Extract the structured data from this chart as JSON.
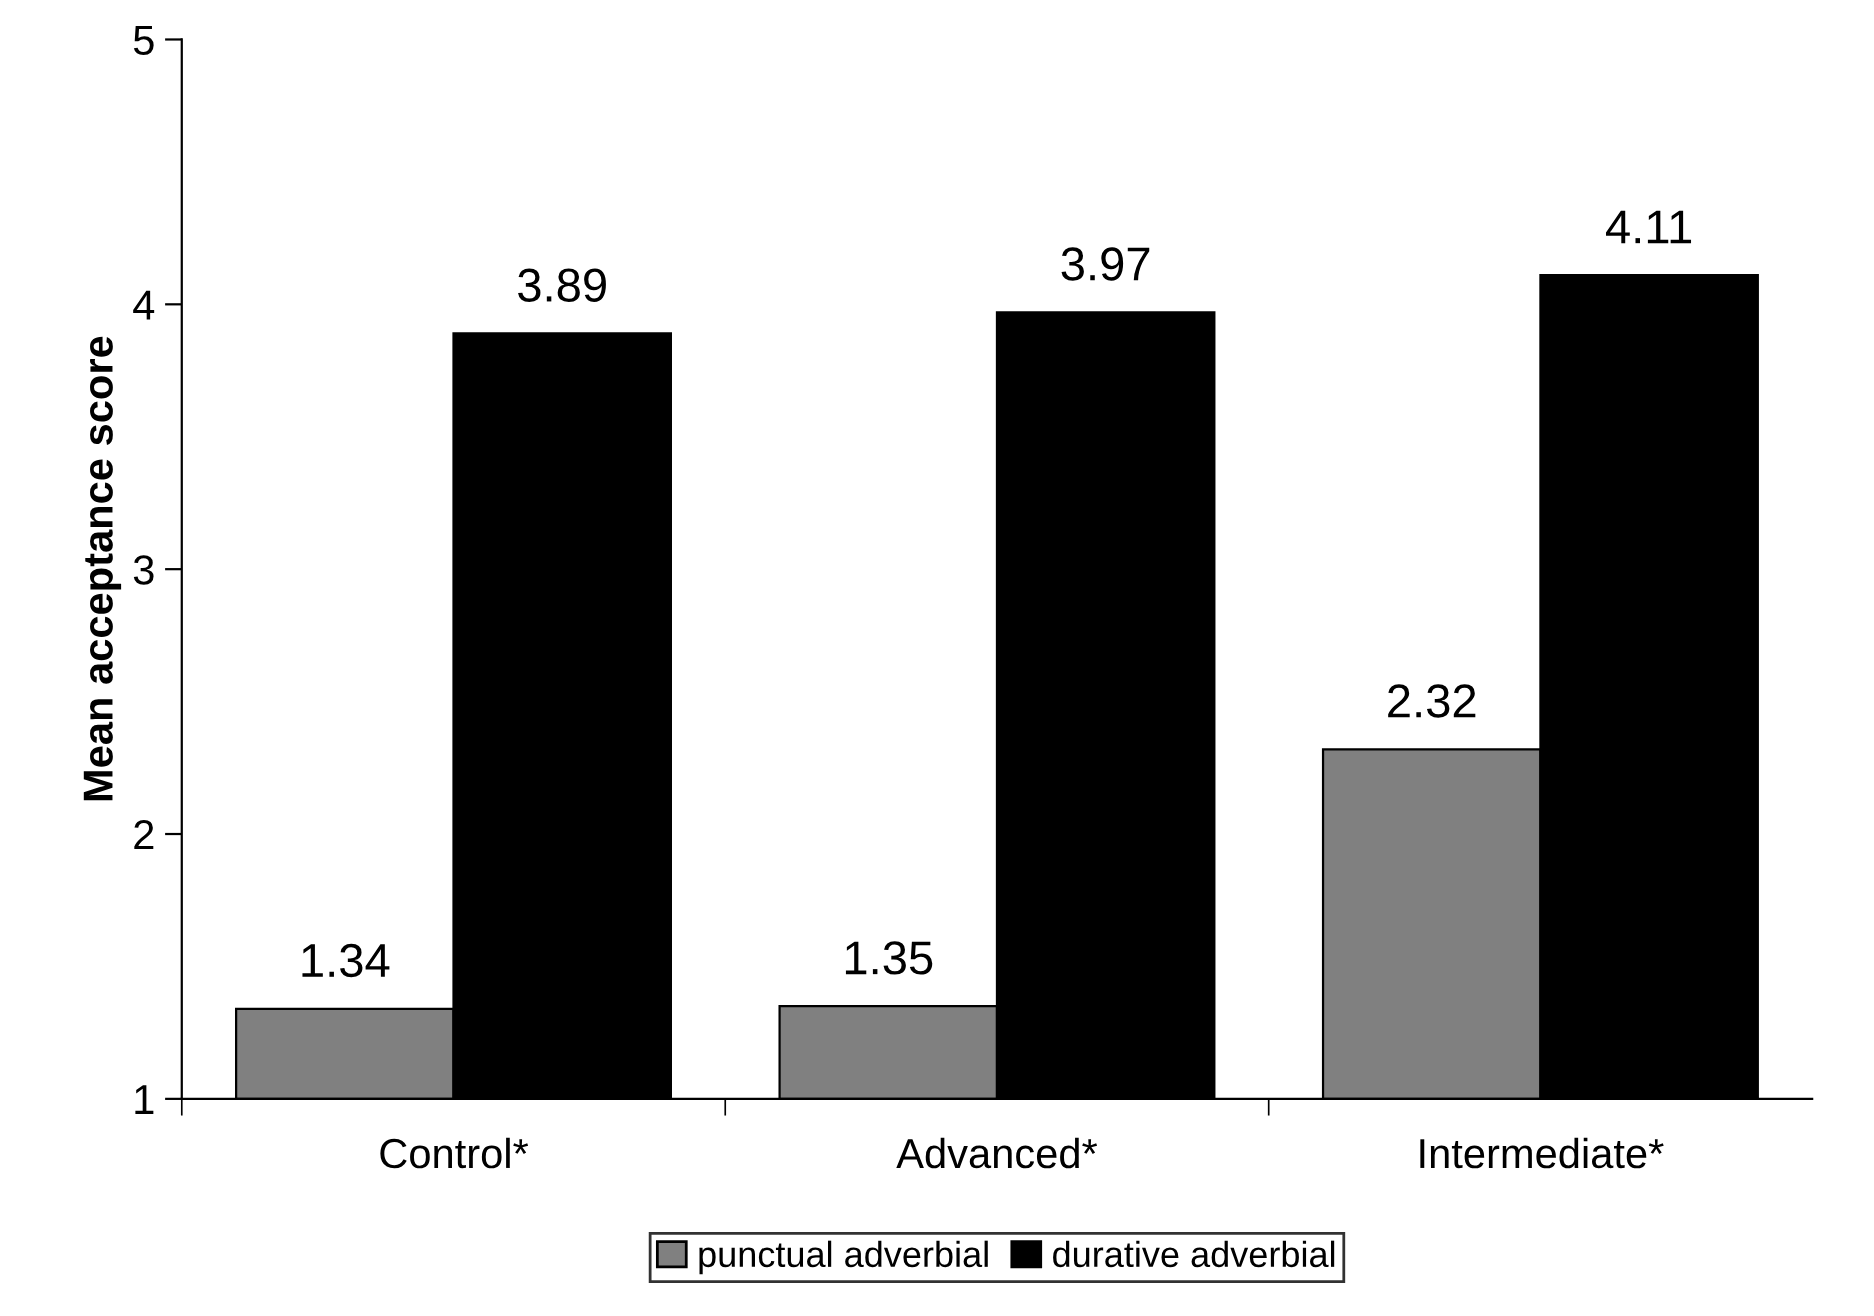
{
  "chart_data": {
    "type": "bar",
    "ylabel": "Mean acceptance score",
    "categories": [
      "Control*",
      "Advanced*",
      "Intermediate*"
    ],
    "series": [
      {
        "name": "punctual adverbial",
        "color": "#808080",
        "values": [
          1.34,
          1.35,
          2.32
        ]
      },
      {
        "name": "durative adverbial",
        "color": "#000000",
        "values": [
          3.89,
          3.97,
          4.11
        ]
      }
    ],
    "ylim": [
      1,
      5
    ],
    "yticks": [
      1,
      2,
      3,
      4,
      5
    ],
    "data_labels": true,
    "grid": false,
    "legend": "bottom"
  }
}
